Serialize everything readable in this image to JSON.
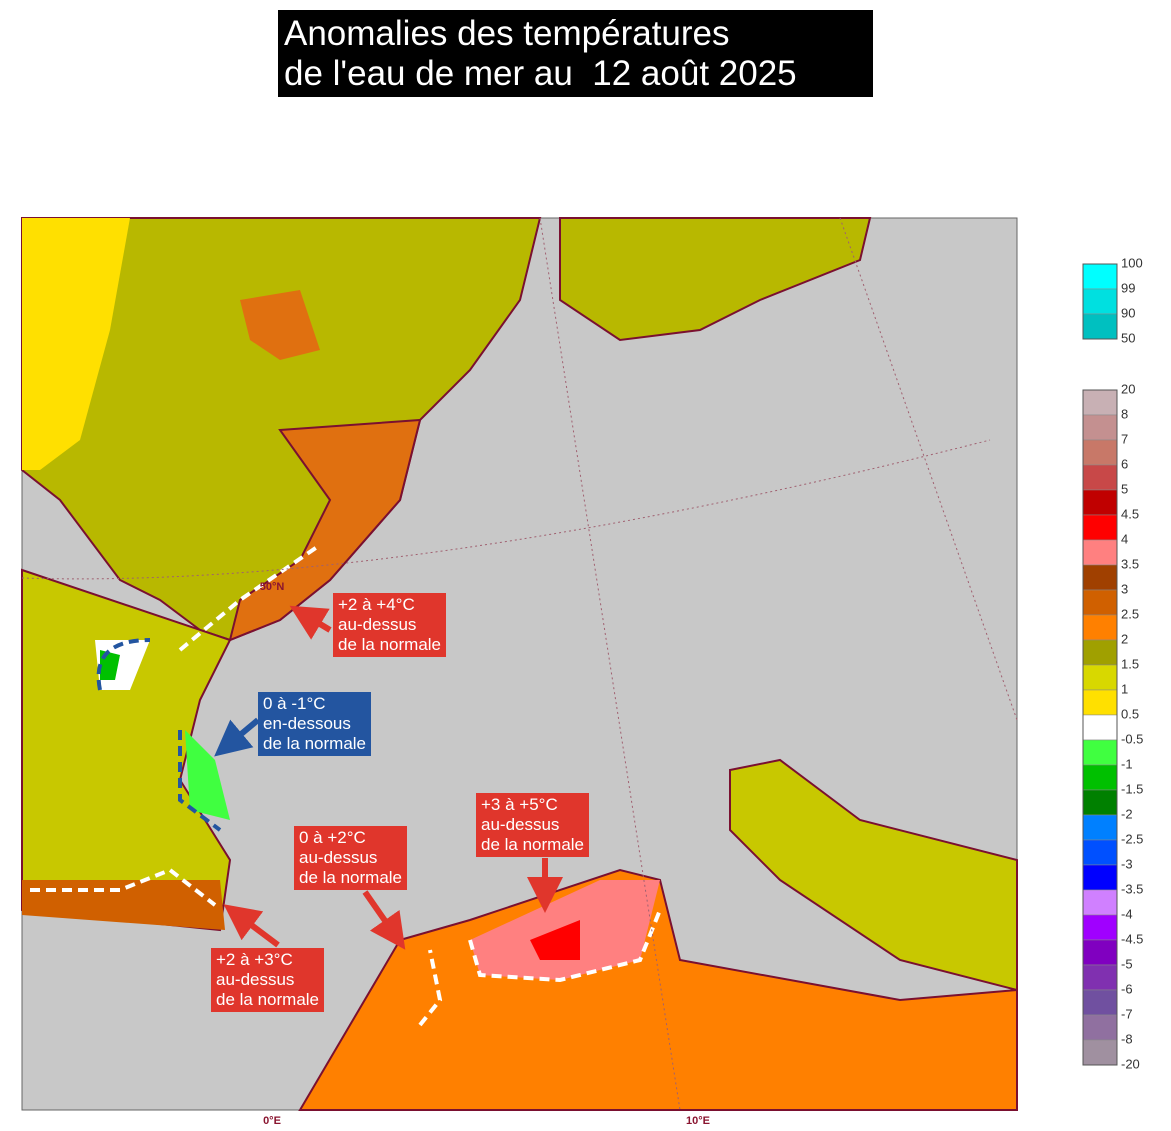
{
  "title": {
    "lines": [
      "Anomalies des températures",
      "de l'eau de mer au  12 août 2025"
    ]
  },
  "map_labels": {
    "lon_0": "0°E",
    "lon_10": "10°E",
    "lat_50": "50°N"
  },
  "legend_top": {
    "labels": [
      "100",
      "99",
      "90",
      "50"
    ],
    "colors": [
      "#00ffff",
      "#00e0e0",
      "#00c0c0"
    ]
  },
  "legend_main": {
    "labels": [
      "20",
      "8",
      "7",
      "6",
      "5",
      "4.5",
      "4",
      "3.5",
      "3",
      "2.5",
      "2",
      "1.5",
      "1",
      "0.5",
      "-0.5",
      "-1",
      "-1.5",
      "-2",
      "-2.5",
      "-3",
      "-3.5",
      "-4",
      "-4.5",
      "-5",
      "-6",
      "-7",
      "-8",
      "-20"
    ],
    "colors": [
      "#c8b0b4",
      "#c49090",
      "#c87868",
      "#c84848",
      "#c00000",
      "#ff0000",
      "#ff8080",
      "#a04000",
      "#d06000",
      "#ff8000",
      "#a0a000",
      "#d8d800",
      "#ffe000",
      "#ffffff",
      "#40ff40",
      "#00c000",
      "#008000",
      "#0080ff",
      "#0050ff",
      "#0000ff",
      "#d080ff",
      "#a000ff",
      "#8000c0",
      "#8030b0",
      "#7050a0",
      "#9070a0",
      "#a090a0"
    ]
  },
  "annotations": [
    {
      "lines": [
        "+2 à +4°C",
        "au-dessus",
        "de la normale"
      ]
    },
    {
      "lines": [
        "0 à -1°C",
        "en-dessous",
        "de la normale"
      ]
    },
    {
      "lines": [
        "+3 à +5°C",
        "au-dessus",
        "de la normale"
      ]
    },
    {
      "lines": [
        "0 à +2°C",
        "au-dessus",
        "de la normale"
      ]
    },
    {
      "lines": [
        "+2 à +3°C",
        "au-dessus",
        "de la normale"
      ]
    }
  ]
}
